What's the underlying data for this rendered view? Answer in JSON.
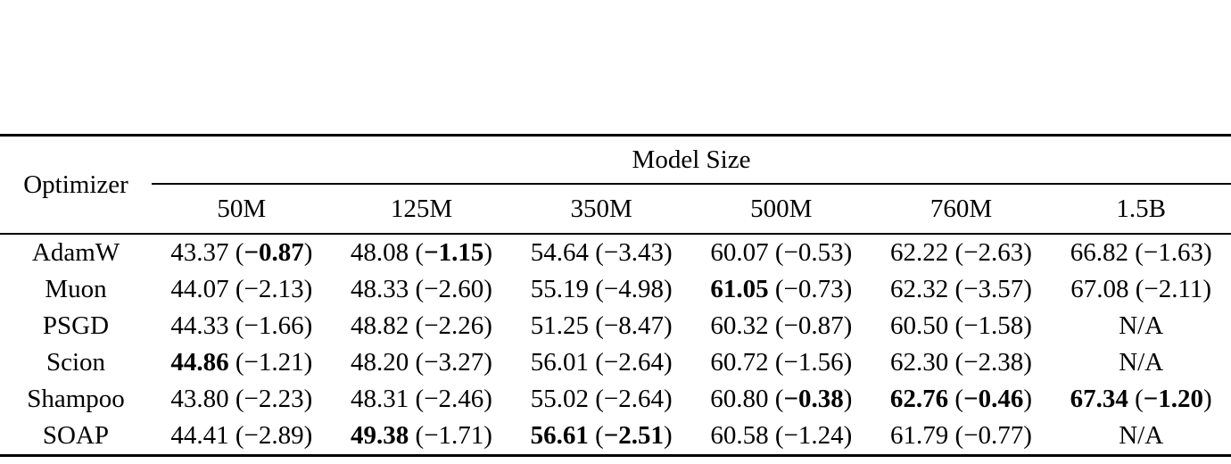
{
  "page": {
    "background_color": "#ffffff",
    "text_color": "#000000"
  },
  "table": {
    "corner_header": "Optimizer",
    "group_header": "Model Size",
    "columns": [
      "50M",
      "125M",
      "350M",
      "500M",
      "760M",
      "1.5B"
    ],
    "na_text": "N/A",
    "rows": [
      {
        "optimizer": "AdamW",
        "cells": [
          {
            "value": "43.37",
            "delta": "−0.87",
            "value_bold": false,
            "delta_bold": true
          },
          {
            "value": "48.08",
            "delta": "−1.15",
            "value_bold": false,
            "delta_bold": true
          },
          {
            "value": "54.64",
            "delta": "−3.43",
            "value_bold": false,
            "delta_bold": false
          },
          {
            "value": "60.07",
            "delta": "−0.53",
            "value_bold": false,
            "delta_bold": false
          },
          {
            "value": "62.22",
            "delta": "−2.63",
            "value_bold": false,
            "delta_bold": false
          },
          {
            "value": "66.82",
            "delta": "−1.63",
            "value_bold": false,
            "delta_bold": false
          }
        ]
      },
      {
        "optimizer": "Muon",
        "cells": [
          {
            "value": "44.07",
            "delta": "−2.13",
            "value_bold": false,
            "delta_bold": false
          },
          {
            "value": "48.33",
            "delta": "−2.60",
            "value_bold": false,
            "delta_bold": false
          },
          {
            "value": "55.19",
            "delta": "−4.98",
            "value_bold": false,
            "delta_bold": false
          },
          {
            "value": "61.05",
            "delta": "−0.73",
            "value_bold": true,
            "delta_bold": false
          },
          {
            "value": "62.32",
            "delta": "−3.57",
            "value_bold": false,
            "delta_bold": false
          },
          {
            "value": "67.08",
            "delta": "−2.11",
            "value_bold": false,
            "delta_bold": false
          }
        ]
      },
      {
        "optimizer": "PSGD",
        "cells": [
          {
            "value": "44.33",
            "delta": "−1.66",
            "value_bold": false,
            "delta_bold": false
          },
          {
            "value": "48.82",
            "delta": "−2.26",
            "value_bold": false,
            "delta_bold": false
          },
          {
            "value": "51.25",
            "delta": "−8.47",
            "value_bold": false,
            "delta_bold": false
          },
          {
            "value": "60.32",
            "delta": "−0.87",
            "value_bold": false,
            "delta_bold": false
          },
          {
            "value": "60.50",
            "delta": "−1.58",
            "value_bold": false,
            "delta_bold": false
          },
          {
            "na": true
          }
        ]
      },
      {
        "optimizer": "Scion",
        "cells": [
          {
            "value": "44.86",
            "delta": "−1.21",
            "value_bold": true,
            "delta_bold": false
          },
          {
            "value": "48.20",
            "delta": "−3.27",
            "value_bold": false,
            "delta_bold": false
          },
          {
            "value": "56.01",
            "delta": "−2.64",
            "value_bold": false,
            "delta_bold": false
          },
          {
            "value": "60.72",
            "delta": "−1.56",
            "value_bold": false,
            "delta_bold": false
          },
          {
            "value": "62.30",
            "delta": "−2.38",
            "value_bold": false,
            "delta_bold": false
          },
          {
            "na": true
          }
        ]
      },
      {
        "optimizer": "Shampoo",
        "cells": [
          {
            "value": "43.80",
            "delta": "−2.23",
            "value_bold": false,
            "delta_bold": false
          },
          {
            "value": "48.31",
            "delta": "−2.46",
            "value_bold": false,
            "delta_bold": false
          },
          {
            "value": "55.02",
            "delta": "−2.64",
            "value_bold": false,
            "delta_bold": false
          },
          {
            "value": "60.80",
            "delta": "−0.38",
            "value_bold": false,
            "delta_bold": true
          },
          {
            "value": "62.76",
            "delta": "−0.46",
            "value_bold": true,
            "delta_bold": true
          },
          {
            "value": "67.34",
            "delta": "−1.20",
            "value_bold": true,
            "delta_bold": true
          }
        ]
      },
      {
        "optimizer": "SOAP",
        "cells": [
          {
            "value": "44.41",
            "delta": "−2.89",
            "value_bold": false,
            "delta_bold": false
          },
          {
            "value": "49.38",
            "delta": "−1.71",
            "value_bold": true,
            "delta_bold": false
          },
          {
            "value": "56.61",
            "delta": "−2.51",
            "value_bold": true,
            "delta_bold": true
          },
          {
            "value": "60.58",
            "delta": "−1.24",
            "value_bold": false,
            "delta_bold": false
          },
          {
            "value": "61.79",
            "delta": "−0.77",
            "value_bold": false,
            "delta_bold": false
          },
          {
            "na": true
          }
        ]
      }
    ]
  }
}
